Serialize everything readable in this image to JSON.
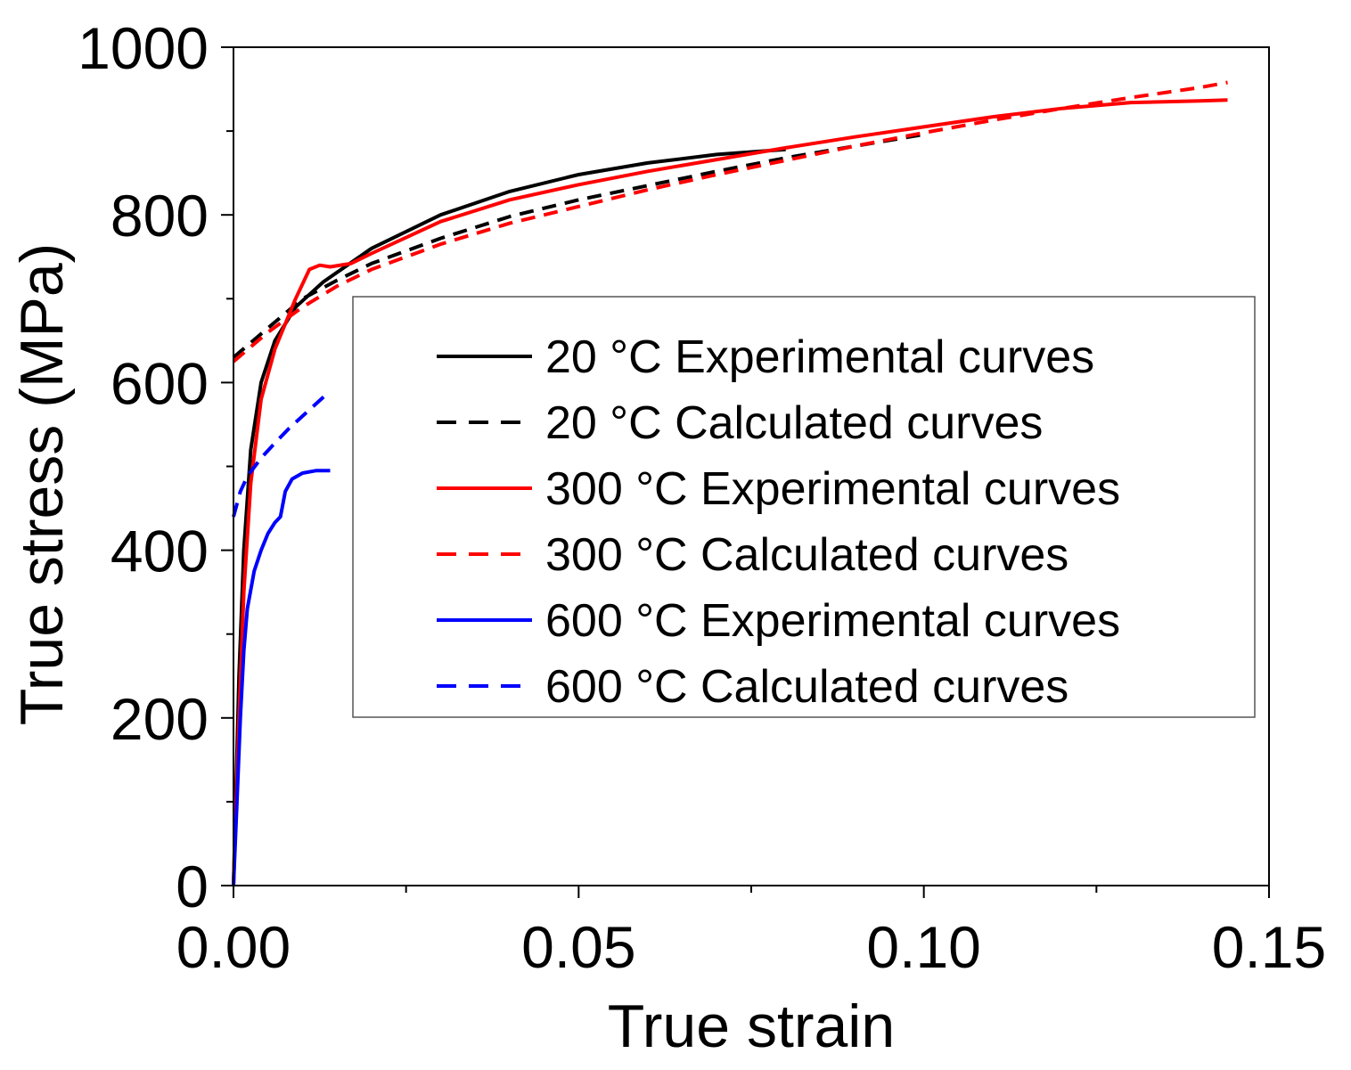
{
  "chart_data": {
    "type": "line",
    "title": "",
    "xlabel": "True strain",
    "ylabel": "True stress (MPa)",
    "xlim": [
      0,
      0.15
    ],
    "ylim": [
      0,
      1000
    ],
    "xticks": [
      "0.00",
      "0.05",
      "0.10",
      "0.15"
    ],
    "yticks": [
      "0",
      "200",
      "400",
      "600",
      "800",
      "1000"
    ],
    "xtick_values": [
      0,
      0.05,
      0.1,
      0.15
    ],
    "ytick_values": [
      0,
      200,
      400,
      600,
      800,
      1000
    ],
    "grid": false,
    "legend_position": "center-right",
    "series": [
      {
        "name": "20 °C Experimental curves",
        "color": "#000000",
        "dash": "solid",
        "points": [
          [
            0.0,
            0
          ],
          [
            0.0008,
            250
          ],
          [
            0.0015,
            400
          ],
          [
            0.0025,
            520
          ],
          [
            0.004,
            600
          ],
          [
            0.006,
            650
          ],
          [
            0.009,
            690
          ],
          [
            0.013,
            720
          ],
          [
            0.02,
            760
          ],
          [
            0.03,
            800
          ],
          [
            0.04,
            828
          ],
          [
            0.05,
            848
          ],
          [
            0.06,
            862
          ],
          [
            0.07,
            872
          ],
          [
            0.08,
            878
          ]
        ]
      },
      {
        "name": "20 °C Calculated curves",
        "color": "#000000",
        "dash": "dashed",
        "points": [
          [
            0.0,
            630
          ],
          [
            0.005,
            665
          ],
          [
            0.01,
            700
          ],
          [
            0.015,
            722
          ],
          [
            0.02,
            742
          ],
          [
            0.03,
            772
          ],
          [
            0.04,
            798
          ],
          [
            0.05,
            818
          ],
          [
            0.06,
            835
          ],
          [
            0.07,
            852
          ],
          [
            0.08,
            868
          ],
          [
            0.09,
            882
          ],
          [
            0.1,
            896
          ]
        ]
      },
      {
        "name": "300 °C Experimental curves",
        "color": "#ff0000",
        "dash": "solid",
        "points": [
          [
            0.0,
            0
          ],
          [
            0.0008,
            200
          ],
          [
            0.0015,
            350
          ],
          [
            0.0025,
            480
          ],
          [
            0.004,
            580
          ],
          [
            0.006,
            640
          ],
          [
            0.009,
            700
          ],
          [
            0.011,
            735
          ],
          [
            0.0125,
            740
          ],
          [
            0.014,
            738
          ],
          [
            0.017,
            742
          ],
          [
            0.02,
            754
          ],
          [
            0.03,
            792
          ],
          [
            0.04,
            818
          ],
          [
            0.05,
            836
          ],
          [
            0.06,
            852
          ],
          [
            0.07,
            866
          ],
          [
            0.08,
            880
          ],
          [
            0.09,
            893
          ],
          [
            0.1,
            905
          ],
          [
            0.11,
            917
          ],
          [
            0.12,
            927
          ],
          [
            0.13,
            934
          ],
          [
            0.14,
            936
          ],
          [
            0.144,
            937
          ]
        ]
      },
      {
        "name": "300 °C Calculated curves",
        "color": "#ff0000",
        "dash": "dashed",
        "points": [
          [
            0.0,
            625
          ],
          [
            0.005,
            660
          ],
          [
            0.01,
            690
          ],
          [
            0.015,
            715
          ],
          [
            0.02,
            735
          ],
          [
            0.03,
            765
          ],
          [
            0.04,
            790
          ],
          [
            0.05,
            810
          ],
          [
            0.06,
            830
          ],
          [
            0.07,
            848
          ],
          [
            0.08,
            865
          ],
          [
            0.09,
            882
          ],
          [
            0.1,
            898
          ],
          [
            0.11,
            913
          ],
          [
            0.12,
            927
          ],
          [
            0.13,
            940
          ],
          [
            0.14,
            952
          ],
          [
            0.144,
            958
          ]
        ]
      },
      {
        "name": "600 °C Experimental curves",
        "color": "#0000ff",
        "dash": "solid",
        "points": [
          [
            0.0,
            0
          ],
          [
            0.0005,
            100
          ],
          [
            0.001,
            200
          ],
          [
            0.0015,
            280
          ],
          [
            0.002,
            330
          ],
          [
            0.003,
            375
          ],
          [
            0.004,
            400
          ],
          [
            0.005,
            420
          ],
          [
            0.006,
            433
          ],
          [
            0.0068,
            440
          ],
          [
            0.0075,
            470
          ],
          [
            0.0085,
            485
          ],
          [
            0.01,
            492
          ],
          [
            0.012,
            495
          ],
          [
            0.014,
            495
          ]
        ]
      },
      {
        "name": "600 °C Calculated curves",
        "color": "#0000ff",
        "dash": "dashed",
        "points": [
          [
            0.0,
            440
          ],
          [
            0.001,
            470
          ],
          [
            0.002,
            488
          ],
          [
            0.004,
            510
          ],
          [
            0.006,
            528
          ],
          [
            0.008,
            545
          ],
          [
            0.01,
            560
          ],
          [
            0.012,
            575
          ],
          [
            0.014,
            590
          ]
        ]
      }
    ]
  }
}
